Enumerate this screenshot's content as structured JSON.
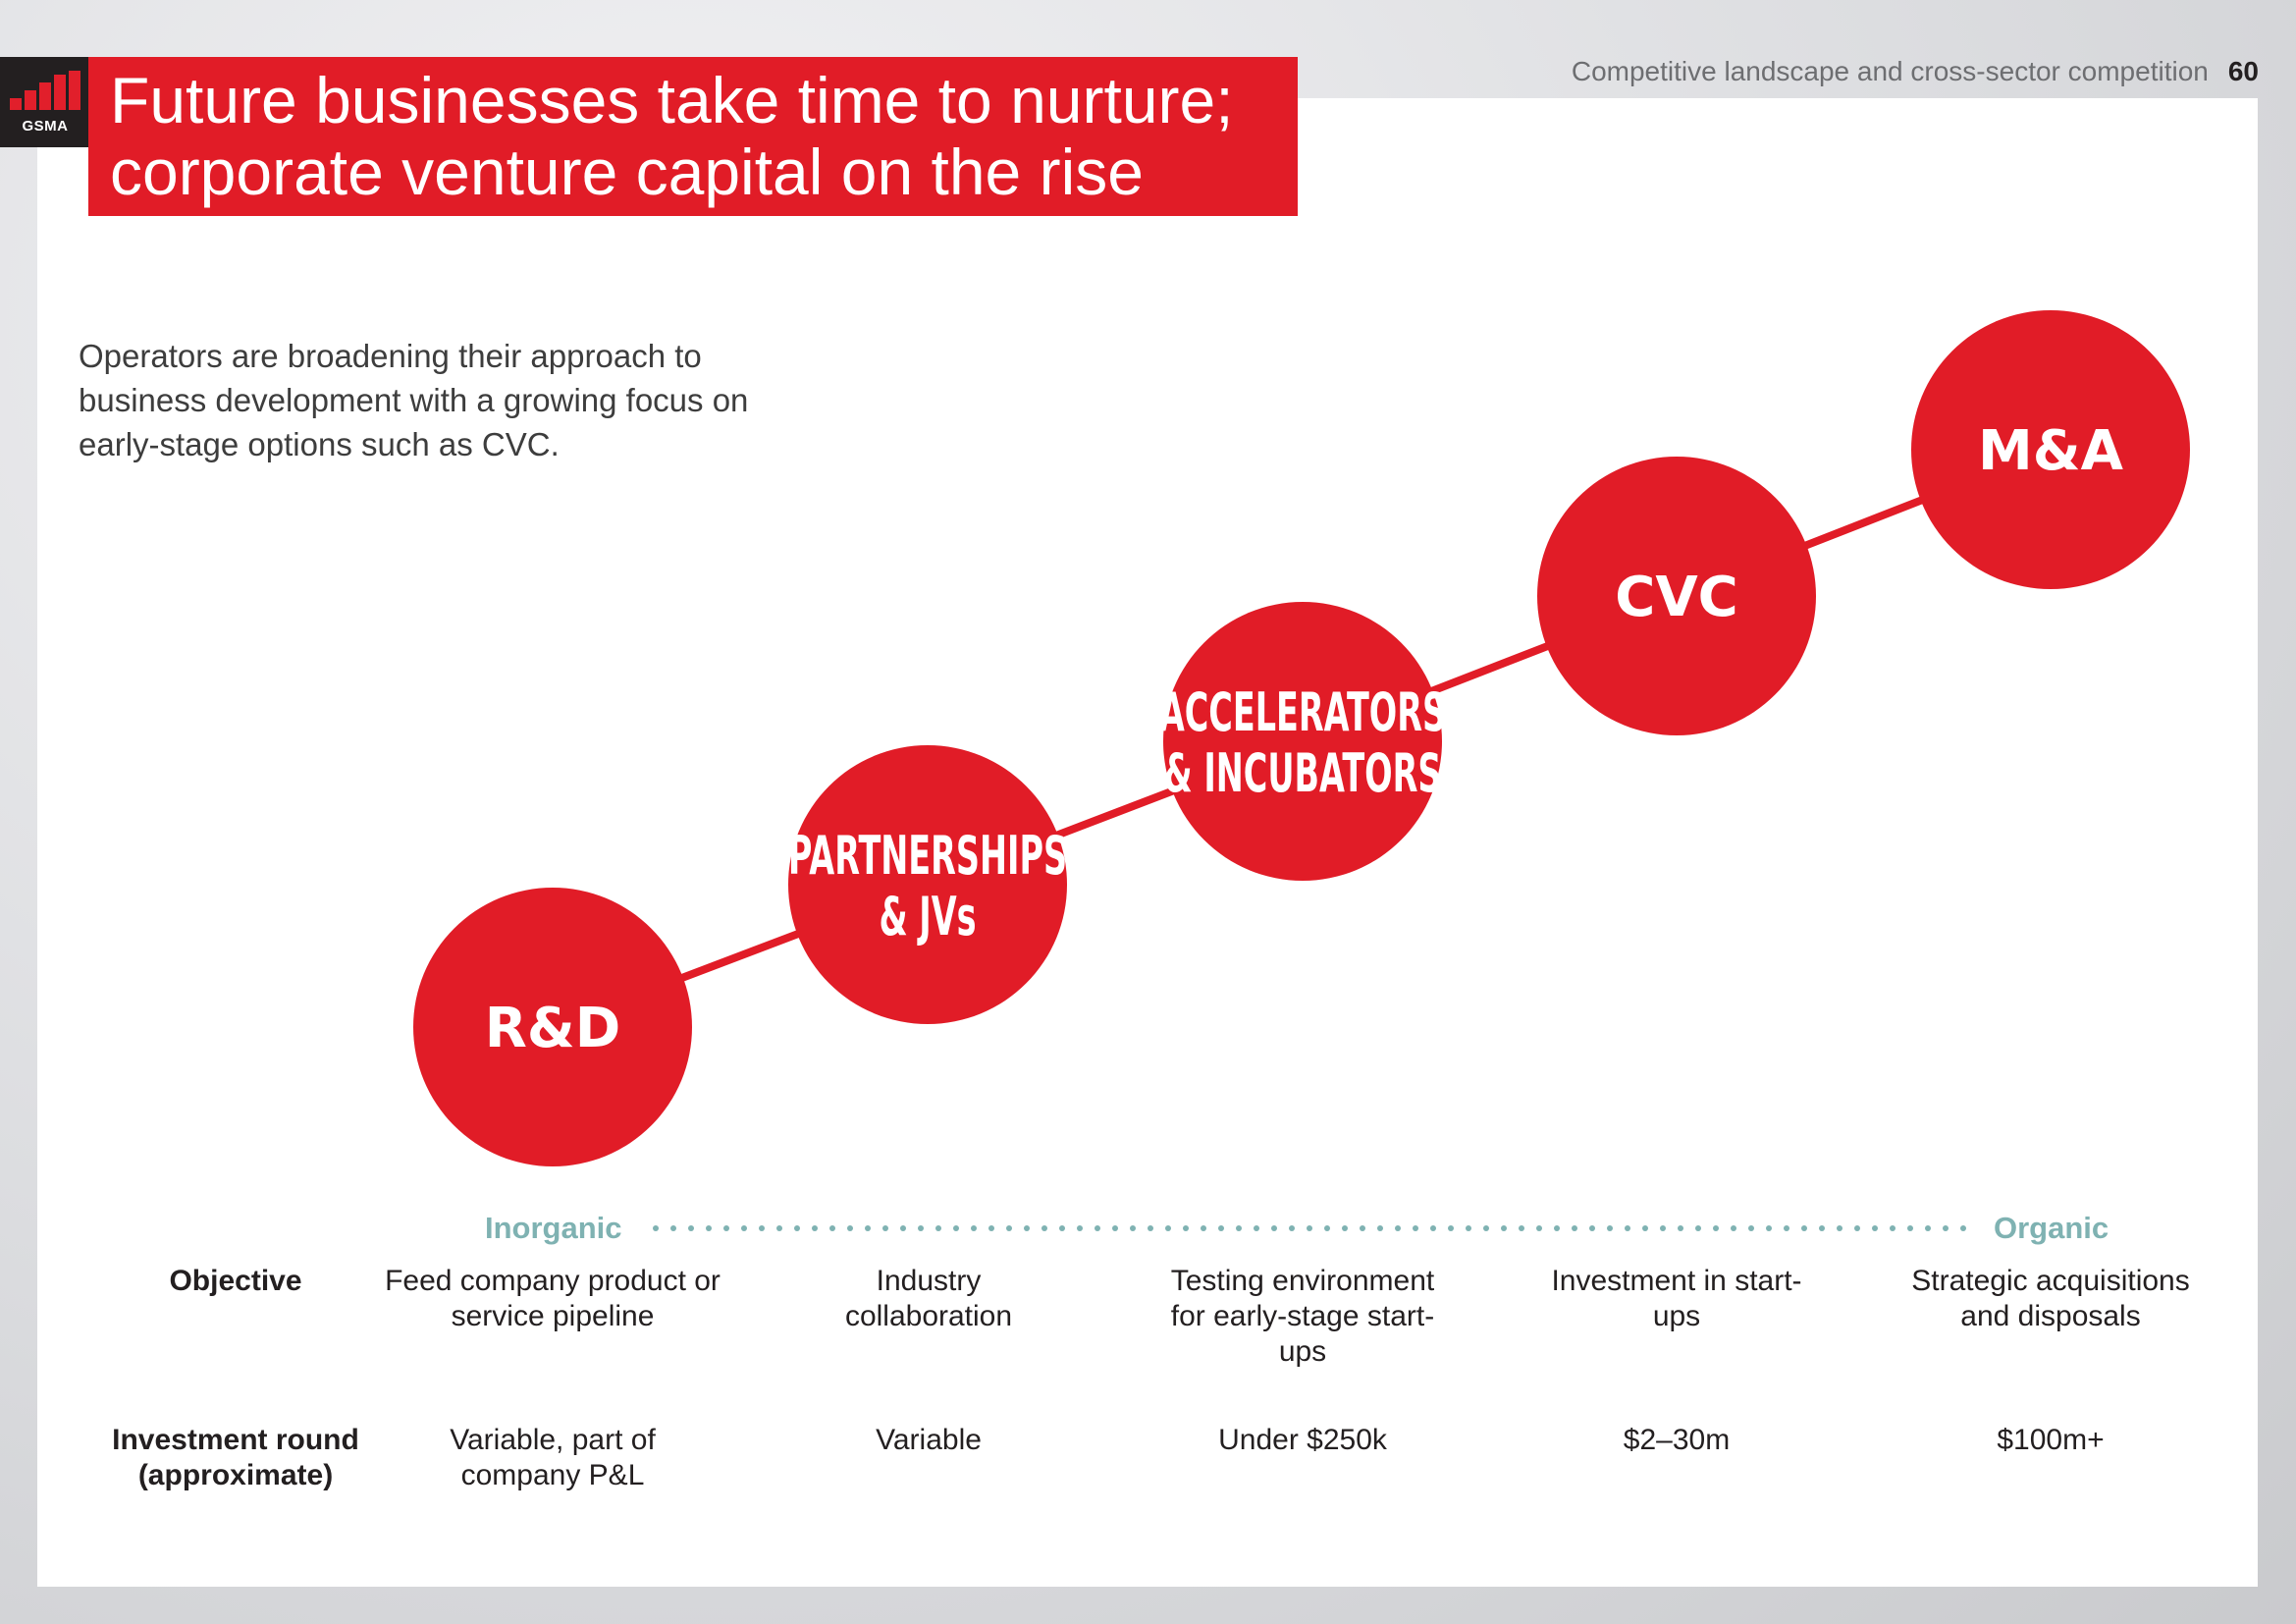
{
  "header": {
    "logo_text": "GSMA",
    "section": "Competitive landscape and cross-sector competition",
    "page_number": "60"
  },
  "title": {
    "line1": "Future businesses take time to nurture;",
    "line2": "corporate venture capital on the rise"
  },
  "intro": "Operators are broadening their approach to business development with a growing focus on early-stage options such as CVC.",
  "colors": {
    "accent": "#e11c27",
    "spectrum": "#7fb2b2"
  },
  "stages": [
    {
      "lines": [
        "R&D"
      ]
    },
    {
      "lines": [
        "PARTNERSHIPS",
        "& JVs"
      ]
    },
    {
      "lines": [
        "ACCELERATORS",
        "& INCUBATORS"
      ]
    },
    {
      "lines": [
        "CVC"
      ]
    },
    {
      "lines": [
        "M&A"
      ]
    }
  ],
  "spectrum": {
    "left": "Inorganic",
    "right": "Organic"
  },
  "rows": [
    {
      "label": "Objective",
      "cells": [
        "Feed company product or service pipeline",
        "Industry collaboration",
        "Testing environment for early-stage start-ups",
        "Investment in start-ups",
        "Strategic acquisitions and disposals"
      ]
    },
    {
      "label": "Investment round (approximate)",
      "cells": [
        "Variable, part of company P&L",
        "Variable",
        "Under $250k",
        "$2–30m",
        "$100m+"
      ]
    }
  ]
}
